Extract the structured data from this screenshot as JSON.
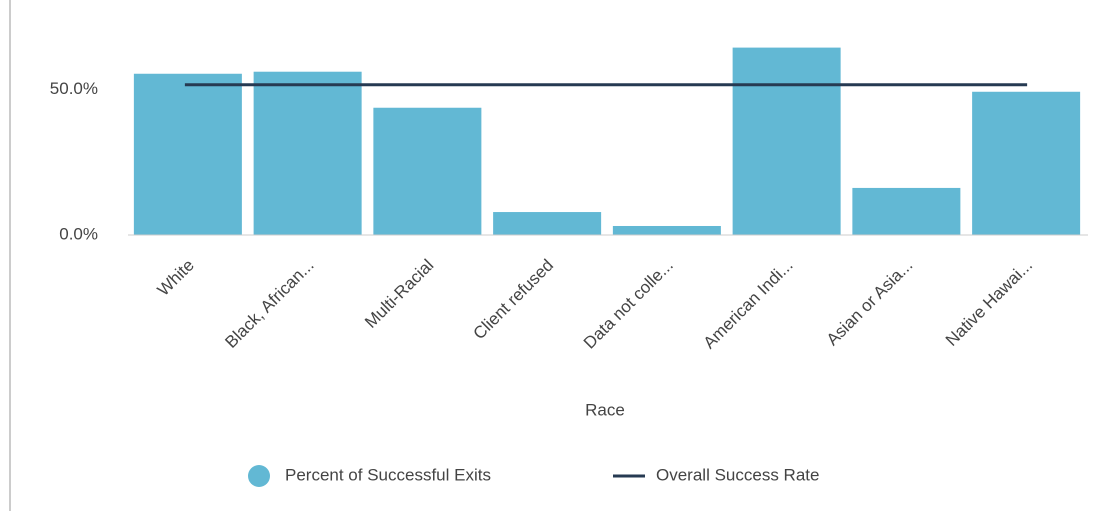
{
  "chart_data": {
    "type": "bar",
    "categories": [
      "White",
      "Black, African...",
      "Multi-Racial",
      "Client refused",
      "Data not colle...",
      "American Indi...",
      "Asian or Asia...",
      "Native Hawai..."
    ],
    "x_label": "Race",
    "series": [
      {
        "name": "Percent of Successful Exits",
        "color": "#62b8d4",
        "values": [
          55.5,
          56.2,
          43.8,
          7.9,
          3.1,
          64.5,
          16.2,
          49.3
        ]
      },
      {
        "name": "Overall Success Rate",
        "color": "#263a52",
        "value": 51.7
      }
    ],
    "ylim": [
      0,
      74
    ],
    "yticks": [
      {
        "value": 0,
        "label": "0.0%"
      },
      {
        "value": 50,
        "label": "50.0%"
      }
    ],
    "legend": "bottom"
  }
}
